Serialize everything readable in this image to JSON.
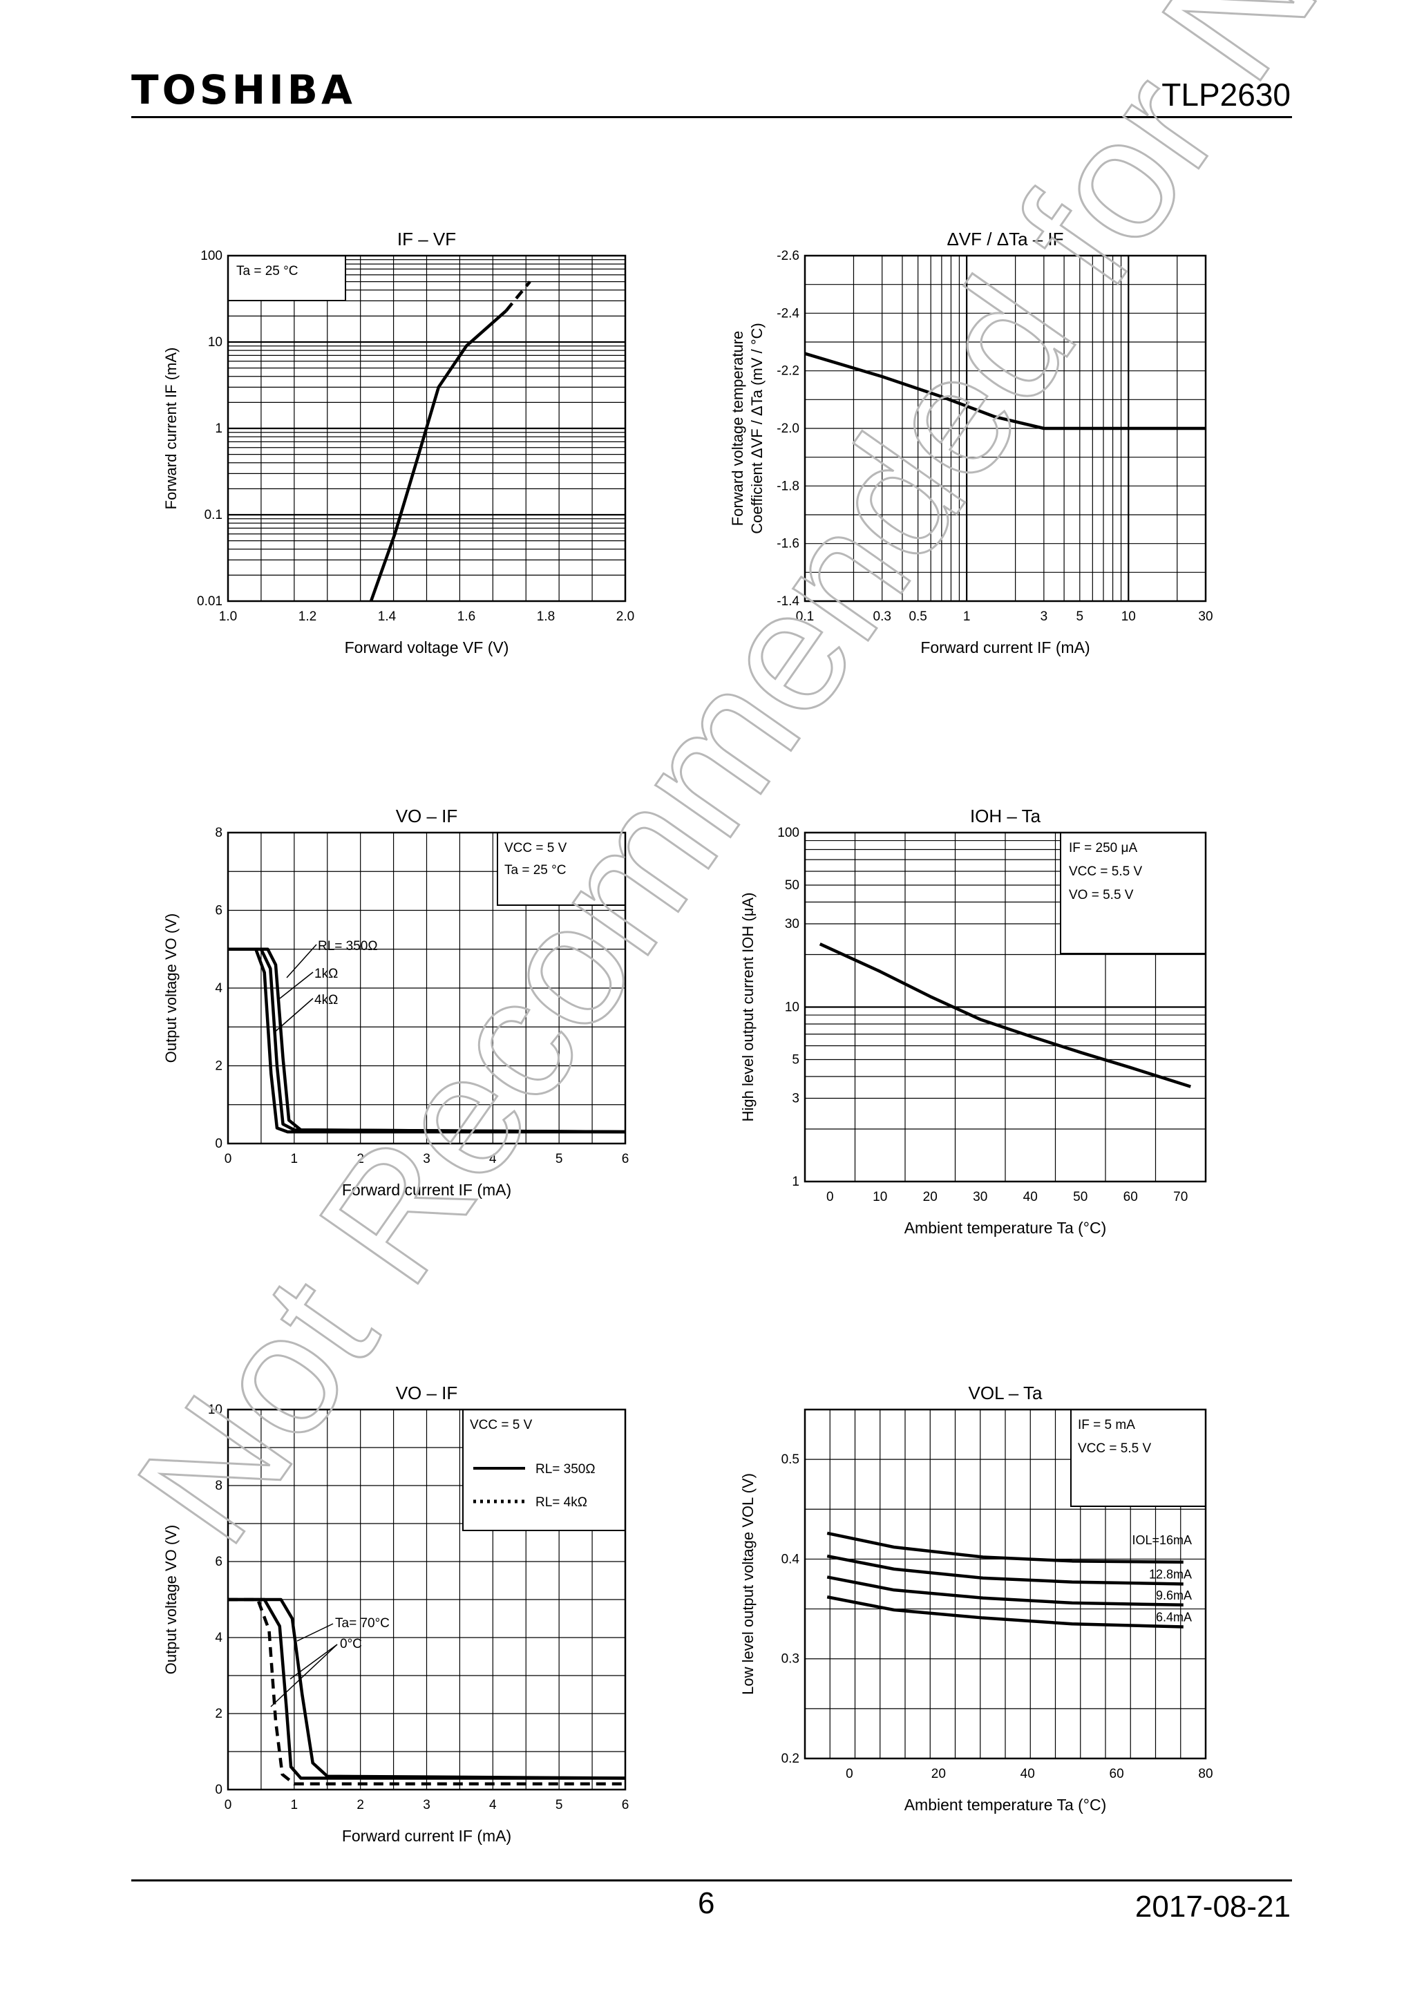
{
  "header": {
    "logo": "TOSHIBA",
    "part_number": "TLP2630"
  },
  "footer": {
    "page": "6",
    "date": "2017-08-21"
  },
  "watermark": "Not Recommended for New Design",
  "chart_data": [
    {
      "id": "c1",
      "type": "line",
      "title": "IF – VF",
      "xlabel": "Forward voltage     VF   (V)",
      "ylabel": "Forward current     IF   (mA)",
      "xscale": "linear",
      "yscale": "log",
      "xlim": [
        1.0,
        2.0
      ],
      "ylim": [
        0.01,
        100
      ],
      "xticks": [
        "1.0",
        "1.2",
        "1.4",
        "1.6",
        "1.8",
        "2.0"
      ],
      "yticks": [
        "0.01",
        "0.1",
        "1",
        "10",
        "100"
      ],
      "annotations": [
        "Ta = 25 °C"
      ],
      "series": [
        {
          "style": "solid",
          "x": [
            1.36,
            1.42,
            1.48,
            1.53,
            1.6,
            1.7
          ],
          "y": [
            0.01,
            0.06,
            0.5,
            3,
            9,
            23
          ]
        },
        {
          "style": "dashed",
          "x": [
            1.7,
            1.76
          ],
          "y": [
            23,
            50
          ]
        }
      ]
    },
    {
      "id": "c2",
      "type": "line",
      "title": "ΔVF / ΔTa – IF",
      "xlabel": "Forward current      IF    (mA)",
      "ylabel": "Forward voltage temperature Coefficient ΔVF / ΔTa (mV / °C)",
      "xscale": "log",
      "yscale": "linear",
      "xlim": [
        0.1,
        30
      ],
      "ylim": [
        -1.4,
        -2.6
      ],
      "xticks": [
        "0.1",
        "0.3",
        "0.5",
        "1",
        "3",
        "5",
        "10",
        "30"
      ],
      "yticks": [
        "-1.4",
        "-1.6",
        "-1.8",
        "-2.0",
        "-2.2",
        "-2.4",
        "-2.6"
      ],
      "series": [
        {
          "style": "solid",
          "x": [
            0.1,
            0.3,
            0.7,
            1.5,
            3,
            30
          ],
          "y": [
            -2.26,
            -2.18,
            -2.11,
            -2.04,
            -2.0,
            -2.0
          ]
        }
      ]
    },
    {
      "id": "c3",
      "type": "line",
      "title": "VO – IF",
      "xlabel": "Forward current      IF    (mA)",
      "ylabel": "Output voltage      VO    (V)",
      "xlim": [
        0,
        6
      ],
      "ylim": [
        0,
        8
      ],
      "xticks": [
        "0",
        "1",
        "2",
        "3",
        "4",
        "5",
        "6"
      ],
      "yticks": [
        "0",
        "2",
        "4",
        "6",
        "8"
      ],
      "annotations": [
        "VCC = 5 V",
        "Ta = 25 °C"
      ],
      "series": [
        {
          "name": "RL= 350Ω",
          "style": "solid",
          "x": [
            0,
            0.6,
            0.72,
            0.83,
            0.92,
            1.1,
            6
          ],
          "y": [
            5,
            5,
            4.6,
            2.2,
            0.6,
            0.35,
            0.3
          ]
        },
        {
          "name": "1kΩ",
          "style": "solid",
          "x": [
            0,
            0.5,
            0.64,
            0.74,
            0.83,
            1.0,
            6
          ],
          "y": [
            5,
            5,
            4.5,
            2.0,
            0.5,
            0.35,
            0.3
          ]
        },
        {
          "name": "4kΩ",
          "style": "solid",
          "x": [
            0,
            0.42,
            0.55,
            0.65,
            0.74,
            0.9,
            6
          ],
          "y": [
            5,
            5,
            4.4,
            1.8,
            0.4,
            0.3,
            0.3
          ]
        }
      ]
    },
    {
      "id": "c4",
      "type": "line",
      "title": "IOH – Ta",
      "xlabel": "Ambient temperature    Ta    (°C)",
      "ylabel": "High level output current    IOH    (μA)",
      "xscale": "linear",
      "yscale": "log",
      "xlim": [
        -5,
        75
      ],
      "ylim": [
        1,
        100
      ],
      "xticks": [
        "0",
        "10",
        "20",
        "30",
        "40",
        "50",
        "60",
        "70"
      ],
      "yticks": [
        "1",
        "3",
        "5",
        "10",
        "30",
        "50",
        "100"
      ],
      "annotations": [
        "IF = 250 μA",
        "VCC = 5.5 V",
        "VO = 5.5 V"
      ],
      "series": [
        {
          "style": "solid",
          "x": [
            -2,
            10,
            20,
            30,
            40,
            50,
            60,
            72
          ],
          "y": [
            23,
            16,
            11.5,
            8.5,
            6.8,
            5.5,
            4.5,
            3.5
          ]
        }
      ]
    },
    {
      "id": "c5",
      "type": "line",
      "title": "VO – IF",
      "xlabel": "Forward current      IF    (mA)",
      "ylabel": "Output voltage      VO    (V)",
      "xlim": [
        0,
        6
      ],
      "ylim": [
        0,
        10
      ],
      "xticks": [
        "0",
        "1",
        "2",
        "3",
        "4",
        "5",
        "6"
      ],
      "yticks": [
        "0",
        "2",
        "4",
        "6",
        "8",
        "10"
      ],
      "annotations": [
        "VCC = 5 V",
        "Ta= 70°C",
        "0°C"
      ],
      "legend": [
        {
          "label": "RL= 350Ω",
          "style": "solid"
        },
        {
          "label": "RL= 4kΩ",
          "style": "dotted"
        }
      ],
      "series": [
        {
          "style": "solid",
          "x": [
            0,
            0.8,
            0.97,
            1.12,
            1.28,
            1.5,
            6
          ],
          "y": [
            5,
            5,
            4.5,
            2.5,
            0.7,
            0.35,
            0.3
          ]
        },
        {
          "style": "solid",
          "x": [
            0,
            0.55,
            0.78,
            0.88,
            0.95,
            1.1,
            6
          ],
          "y": [
            5,
            5,
            4.3,
            2.2,
            0.6,
            0.3,
            0.3
          ]
        },
        {
          "style": "dashed",
          "x": [
            0,
            0.45,
            0.62,
            0.72,
            0.82,
            1.0,
            6
          ],
          "y": [
            5,
            5,
            4.2,
            1.8,
            0.4,
            0.15,
            0.15
          ]
        }
      ]
    },
    {
      "id": "c6",
      "type": "line",
      "title": "VOL – Ta",
      "xlabel": "Ambient temperature    Ta    (°C)",
      "ylabel": "Low level output voltage      VOL      (V)",
      "xlim": [
        -10,
        80
      ],
      "ylim": [
        0.2,
        0.55
      ],
      "xticks": [
        "0",
        "20",
        "40",
        "60",
        "80"
      ],
      "yticks": [
        "0.2",
        "0.3",
        "0.4",
        "0.5"
      ],
      "annotations": [
        "IF = 5 mA",
        "VCC = 5.5 V"
      ],
      "series": [
        {
          "name": "IOL=16mA",
          "style": "solid",
          "x": [
            -5,
            10,
            30,
            50,
            75
          ],
          "y": [
            0.426,
            0.412,
            0.402,
            0.398,
            0.397
          ]
        },
        {
          "name": "12.8mA",
          "style": "solid",
          "x": [
            -5,
            10,
            30,
            50,
            75
          ],
          "y": [
            0.403,
            0.39,
            0.381,
            0.377,
            0.375
          ]
        },
        {
          "name": "9.6mA",
          "style": "solid",
          "x": [
            -5,
            10,
            30,
            50,
            75
          ],
          "y": [
            0.382,
            0.369,
            0.361,
            0.356,
            0.354
          ]
        },
        {
          "name": "6.4mA",
          "style": "solid",
          "x": [
            -5,
            10,
            30,
            50,
            75
          ],
          "y": [
            0.362,
            0.349,
            0.341,
            0.335,
            0.332
          ]
        }
      ]
    }
  ]
}
